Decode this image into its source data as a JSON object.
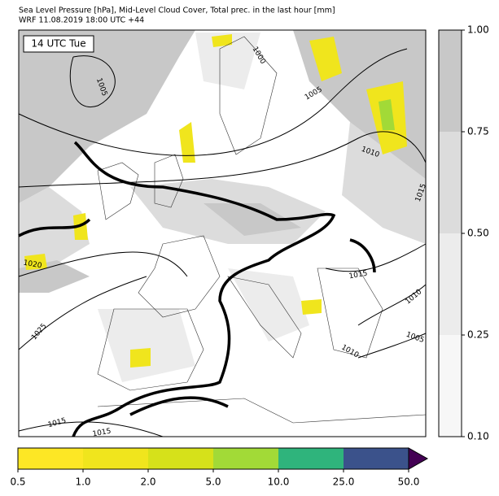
{
  "header": {
    "title": "Sea Level Pressure [hPa], Mid-Level Cloud Cover, Total prec. in the last hour [mm]",
    "subtitle": "WRF 11.08.2019 18:00 UTC +44"
  },
  "map": {
    "time_label": "14 UTC Tue",
    "isobar_labels": [
      1005,
      1000,
      1005,
      1010,
      1015,
      1020,
      1025,
      1015,
      1010,
      1005,
      1010,
      1015,
      1015
    ]
  },
  "cloud_colorbar": {
    "colors": [
      "#f7f7f7",
      "#ececec",
      "#dcdcdc",
      "#c8c8c8"
    ],
    "ticks": [
      {
        "value": 0.1,
        "label": "0.10"
      },
      {
        "value": 0.25,
        "label": "0.25"
      },
      {
        "value": 0.5,
        "label": "0.50"
      },
      {
        "value": 0.75,
        "label": "0.75"
      },
      {
        "value": 1.0,
        "label": "1.00"
      }
    ]
  },
  "precip_colorbar": {
    "colors": [
      "#fde725",
      "#f0e51d",
      "#d6e11a",
      "#a2da37",
      "#2fb47c",
      "#3b528b"
    ],
    "extend_color": "#440154",
    "ticks": [
      0.5,
      {
        "value": 1.0,
        "label": "1.0"
      },
      {
        "value": 2.0,
        "label": "2.0"
      },
      {
        "value": 5.0,
        "label": "5.0"
      },
      {
        "value": 10.0,
        "label": "10.0"
      },
      {
        "value": 25.0,
        "label": "25.0"
      },
      {
        "value": 50.0,
        "label": "50.0"
      }
    ]
  }
}
